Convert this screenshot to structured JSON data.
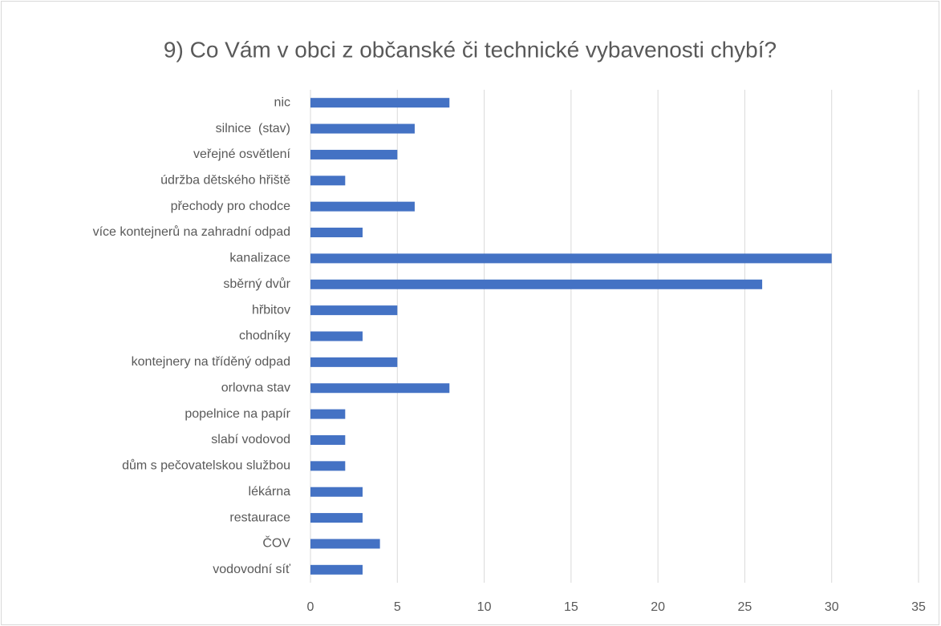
{
  "chart_data": {
    "type": "bar",
    "orientation": "horizontal",
    "title": "9) Co Vám v obci z občanské či technické vybavenosti chybí?",
    "categories": [
      "nic",
      "silnice  (stav)",
      "veřejné osvětlení",
      "údržba dětského hřiště",
      "přechody pro chodce",
      "více kontejnerů na zahradní odpad",
      "kanalizace",
      "sběrný dvůr",
      "hřbitov",
      "chodníky",
      "kontejnery na tříděný odpad",
      "orlovna stav",
      "popelnice na papír",
      "slabí vodovod",
      "dům s pečovatelskou službou",
      "lékárna",
      "restaurace",
      "ČOV",
      "vodovodní síť"
    ],
    "values": [
      8,
      6,
      5,
      2,
      6,
      3,
      30,
      26,
      5,
      3,
      5,
      8,
      2,
      2,
      2,
      3,
      3,
      4,
      3
    ],
    "color": "#4472c4",
    "xlim": [
      0,
      35
    ],
    "xticks": [
      0,
      5,
      10,
      15,
      20,
      25,
      30,
      35
    ],
    "grid": true
  }
}
